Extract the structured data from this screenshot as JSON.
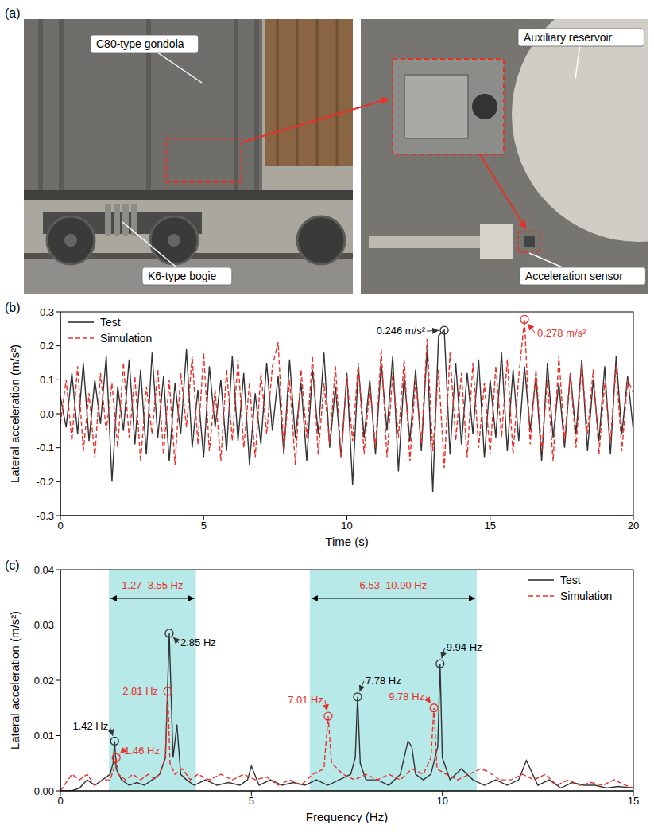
{
  "panel_a": {
    "label": "(a)",
    "photo_left": [
      "C80-type gondola",
      "K6-type bogie"
    ],
    "photo_right": [
      "Auxiliary reservoir",
      "Acceleration sensor"
    ]
  },
  "chart_data": [
    {
      "label": "(b)",
      "type": "line",
      "x_label": "Time (s)",
      "y_label": "Lateral acceleration (m/s²)",
      "legend": "upper left",
      "xlim": [
        0,
        20
      ],
      "xticks": [
        0,
        5,
        10,
        15,
        20
      ],
      "ylim": [
        -0.3,
        0.3
      ],
      "yticks": [
        -0.3,
        -0.2,
        -0.1,
        {
          "value": 0,
          "label": "0.0"
        },
        0.1,
        0.2,
        0.3
      ],
      "x": [
        0,
        0.2,
        0.4,
        0.6,
        0.8,
        1,
        1.2,
        1.4,
        1.6,
        1.8,
        2,
        2.2,
        2.4,
        2.6,
        2.8,
        3,
        3.2,
        3.4,
        3.6,
        3.8,
        4,
        4.2,
        4.4,
        4.6,
        4.8,
        5,
        5.2,
        5.4,
        5.6,
        5.8,
        6,
        6.2,
        6.4,
        6.6,
        6.8,
        7,
        7.2,
        7.4,
        7.6,
        7.8,
        8,
        8.2,
        8.4,
        8.6,
        8.8,
        9,
        9.2,
        9.4,
        9.6,
        9.8,
        10,
        10.2,
        10.4,
        10.6,
        10.8,
        11,
        11.2,
        11.4,
        11.6,
        11.8,
        12,
        12.2,
        12.4,
        12.6,
        12.8,
        13,
        13.2,
        13.4,
        13.6,
        13.8,
        14,
        14.2,
        14.4,
        14.6,
        14.8,
        15,
        15.2,
        15.4,
        15.6,
        15.8,
        16,
        16.2,
        16.4,
        16.6,
        16.8,
        17,
        17.2,
        17.4,
        17.6,
        17.8,
        18,
        18.2,
        18.4,
        18.6,
        18.8,
        19,
        19.2,
        19.4,
        19.6,
        19.8,
        20
      ],
      "series": [
        {
          "name": "Test",
          "color": "#333333",
          "line_style": "solid",
          "values": [
            0.05,
            -0.04,
            0.12,
            -0.06,
            0.15,
            -0.08,
            0.1,
            -0.03,
            0.17,
            -0.2,
            0.08,
            -0.05,
            0.16,
            -0.09,
            0.13,
            -0.12,
            0.18,
            -0.07,
            0.11,
            -0.14,
            0.09,
            -0.06,
            0.19,
            -0.1,
            0.07,
            -0.13,
            0.14,
            -0.04,
            0.1,
            -0.11,
            0.17,
            -0.08,
            0.12,
            -0.15,
            0.06,
            -0.09,
            0.15,
            -0.05,
            0.11,
            -0.12,
            0.16,
            -0.07,
            0.09,
            -0.14,
            0.13,
            -0.06,
            0.18,
            -0.1,
            0.08,
            -0.13,
            0.12,
            -0.21,
            0.14,
            -0.07,
            0.1,
            -0.12,
            0.15,
            -0.05,
            0.17,
            -0.17,
            0.11,
            -0.08,
            0.13,
            -0.11,
            0.19,
            -0.23,
            0.23,
            0.246,
            -0.12,
            0.15,
            -0.09,
            0.12,
            -0.06,
            0.16,
            -0.13,
            0.1,
            -0.07,
            0.18,
            -0.11,
            0.13,
            -0.08,
            0.14,
            -0.05,
            0.11,
            -0.14,
            0.15,
            -0.07,
            0.09,
            -0.1,
            0.12,
            -0.06,
            0.16,
            -0.11,
            0.1,
            -0.08,
            0.14,
            -0.12,
            0.17,
            -0.06,
            0.11,
            -0.05
          ]
        },
        {
          "name": "Simulation",
          "color": "#e8302a",
          "line_style": "dashed",
          "values": [
            -0.03,
            0.1,
            -0.08,
            0.14,
            -0.11,
            0.06,
            -0.13,
            0.12,
            -0.05,
            0.09,
            -0.1,
            0.15,
            -0.07,
            0.11,
            -0.14,
            0.08,
            -0.06,
            0.13,
            -0.12,
            0.1,
            -0.15,
            0.12,
            -0.04,
            0.17,
            -0.09,
            0.18,
            -0.11,
            0.07,
            -0.14,
            0.13,
            -0.08,
            0.16,
            -0.1,
            0.09,
            -0.13,
            0.12,
            -0.06,
            0.14,
            0.21,
            -0.11,
            0.1,
            -0.15,
            0.13,
            -0.07,
            0.17,
            -0.12,
            0.09,
            -0.09,
            0.14,
            -0.13,
            0.11,
            -0.08,
            0.15,
            -0.12,
            0.08,
            -0.1,
            0.19,
            -0.13,
            0.12,
            -0.07,
            0.16,
            -0.14,
            0.1,
            -0.09,
            0.22,
            -0.11,
            0.13,
            -0.16,
            0.18,
            -0.08,
            0.12,
            -0.13,
            0.15,
            -0.1,
            0.09,
            -0.12,
            0.14,
            -0.07,
            0.16,
            -0.12,
            0.11,
            0.278,
            -0.09,
            0.13,
            -0.11,
            0.1,
            -0.14,
            0.17,
            -0.08,
            0.12,
            -0.1,
            0.15,
            -0.06,
            0.13,
            -0.12,
            0.09,
            -0.08,
            0.14,
            -0.11,
            0.1,
            0.06
          ]
        }
      ],
      "annotations": [
        {
          "series": "Test",
          "x": 13.4,
          "y": 0.246,
          "text": "0.246 m/s²"
        },
        {
          "series": "Simulation",
          "x": 16.2,
          "y": 0.278,
          "text": "0.278 m/s²"
        }
      ]
    },
    {
      "label": "(c)",
      "type": "line",
      "x_label": "Frequency (Hz)",
      "y_label": "Lateral acceleration (m/s²)",
      "legend": "upper right",
      "xlim": [
        0,
        15
      ],
      "xticks": [
        0,
        5,
        10,
        15
      ],
      "ylim": [
        0,
        0.04
      ],
      "yticks": [
        {
          "value": 0,
          "label": "0.00"
        },
        0.01,
        0.02,
        0.03,
        0.04
      ],
      "bands": [
        {
          "x": [
            1.27,
            3.55
          ],
          "text": "1.27–3.55 Hz"
        },
        {
          "x": [
            6.53,
            10.9
          ],
          "text": "6.53–10.90 Hz"
        }
      ],
      "series": [
        {
          "name": "Test",
          "color": "#333333",
          "line_style": "solid",
          "x": [
            0,
            0.3,
            0.5,
            0.7,
            0.9,
            1.1,
            1.3,
            1.38,
            1.42,
            1.46,
            1.6,
            1.8,
            2,
            2.2,
            2.4,
            2.6,
            2.75,
            2.85,
            2.95,
            3.05,
            3.15,
            3.3,
            3.5,
            3.8,
            4.1,
            4.4,
            4.7,
            4.9,
            5,
            5.2,
            5.5,
            5.8,
            6.1,
            6.4,
            6.7,
            7,
            7.3,
            7.6,
            7.72,
            7.78,
            7.85,
            8,
            8.3,
            8.6,
            8.9,
            9.1,
            9.2,
            9.3,
            9.5,
            9.7,
            9.88,
            9.94,
            10,
            10.2,
            10.5,
            10.8,
            11.1,
            11.4,
            11.7,
            12,
            12.2,
            12.5,
            12.8,
            13.1,
            13.4,
            13.7,
            14,
            14.3,
            14.6,
            15
          ],
          "values": [
            0,
            0,
            0.0005,
            0.002,
            0.001,
            0.002,
            0.003,
            0.005,
            0.009,
            0.004,
            0.002,
            0.001,
            0.0015,
            0.001,
            0.002,
            0.003,
            0.006,
            0.0285,
            0.006,
            0.012,
            0.003,
            0.002,
            0.001,
            0.002,
            0.001,
            0.0015,
            0.001,
            0.002,
            0.0045,
            0.001,
            0.002,
            0.001,
            0.0015,
            0.001,
            0.002,
            0.001,
            0.002,
            0.003,
            0.006,
            0.017,
            0.005,
            0.002,
            0.002,
            0.001,
            0.003,
            0.009,
            0.008,
            0.003,
            0.002,
            0.003,
            0.008,
            0.023,
            0.006,
            0.002,
            0.004,
            0.002,
            0.001,
            0.002,
            0.001,
            0.002,
            0.0055,
            0.001,
            0.002,
            0.0005,
            0.0015,
            0.001,
            0.001,
            0.0005,
            0.0008,
            0.0005
          ]
        },
        {
          "name": "Simulation",
          "color": "#e8302a",
          "line_style": "dashed",
          "x": [
            0,
            0.3,
            0.5,
            0.7,
            0.9,
            1.1,
            1.3,
            1.4,
            1.46,
            1.52,
            1.7,
            1.9,
            2.1,
            2.3,
            2.5,
            2.65,
            2.75,
            2.81,
            2.87,
            3,
            3.2,
            3.4,
            3.6,
            3.9,
            4.2,
            4.5,
            4.8,
            5.1,
            5.4,
            5.7,
            6,
            6.3,
            6.6,
            6.9,
            7.01,
            7.1,
            7.4,
            7.7,
            8,
            8.3,
            8.6,
            8.9,
            9.2,
            9.5,
            9.7,
            9.78,
            9.86,
            10.1,
            10.4,
            10.7,
            11,
            11.2,
            11.5,
            11.8,
            12.1,
            12.4,
            12.7,
            13,
            13.3,
            13.6,
            13.9,
            14.2,
            14.5,
            14.8,
            15
          ],
          "values": [
            0,
            0.003,
            0.002,
            0.003,
            0.001,
            0.002,
            0.002,
            0.004,
            0.006,
            0.003,
            0.002,
            0.003,
            0.002,
            0.003,
            0.002,
            0.004,
            0.006,
            0.018,
            0.005,
            0.003,
            0.004,
            0.002,
            0.003,
            0.002,
            0.003,
            0.002,
            0.003,
            0.002,
            0.0025,
            0.001,
            0.002,
            0.001,
            0.003,
            0.004,
            0.0135,
            0.005,
            0.003,
            0.002,
            0.003,
            0.002,
            0.003,
            0.002,
            0.004,
            0.003,
            0.006,
            0.015,
            0.004,
            0.003,
            0.002,
            0.003,
            0.004,
            0.0035,
            0.002,
            0.002,
            0.003,
            0.002,
            0.003,
            0.001,
            0.002,
            0.001,
            0.0015,
            0.001,
            0.002,
            0.001,
            0.0005
          ]
        }
      ],
      "annotations": [
        {
          "series": "Test",
          "x": 1.42,
          "y": 0.009,
          "text": "1.42 Hz"
        },
        {
          "series": "Test",
          "x": 2.85,
          "y": 0.0285,
          "text": "2.85 Hz"
        },
        {
          "series": "Test",
          "x": 7.78,
          "y": 0.017,
          "text": "7.78 Hz"
        },
        {
          "series": "Test",
          "x": 9.94,
          "y": 0.023,
          "text": "9.94 Hz"
        },
        {
          "series": "Simulation",
          "x": 1.46,
          "y": 0.006,
          "text": "1.46 Hz"
        },
        {
          "series": "Simulation",
          "x": 2.81,
          "y": 0.018,
          "text": "2.81 Hz"
        },
        {
          "series": "Simulation",
          "x": 7.01,
          "y": 0.0135,
          "text": "7.01 Hz"
        },
        {
          "series": "Simulation",
          "x": 9.78,
          "y": 0.015,
          "text": "9.78 Hz"
        }
      ]
    }
  ]
}
